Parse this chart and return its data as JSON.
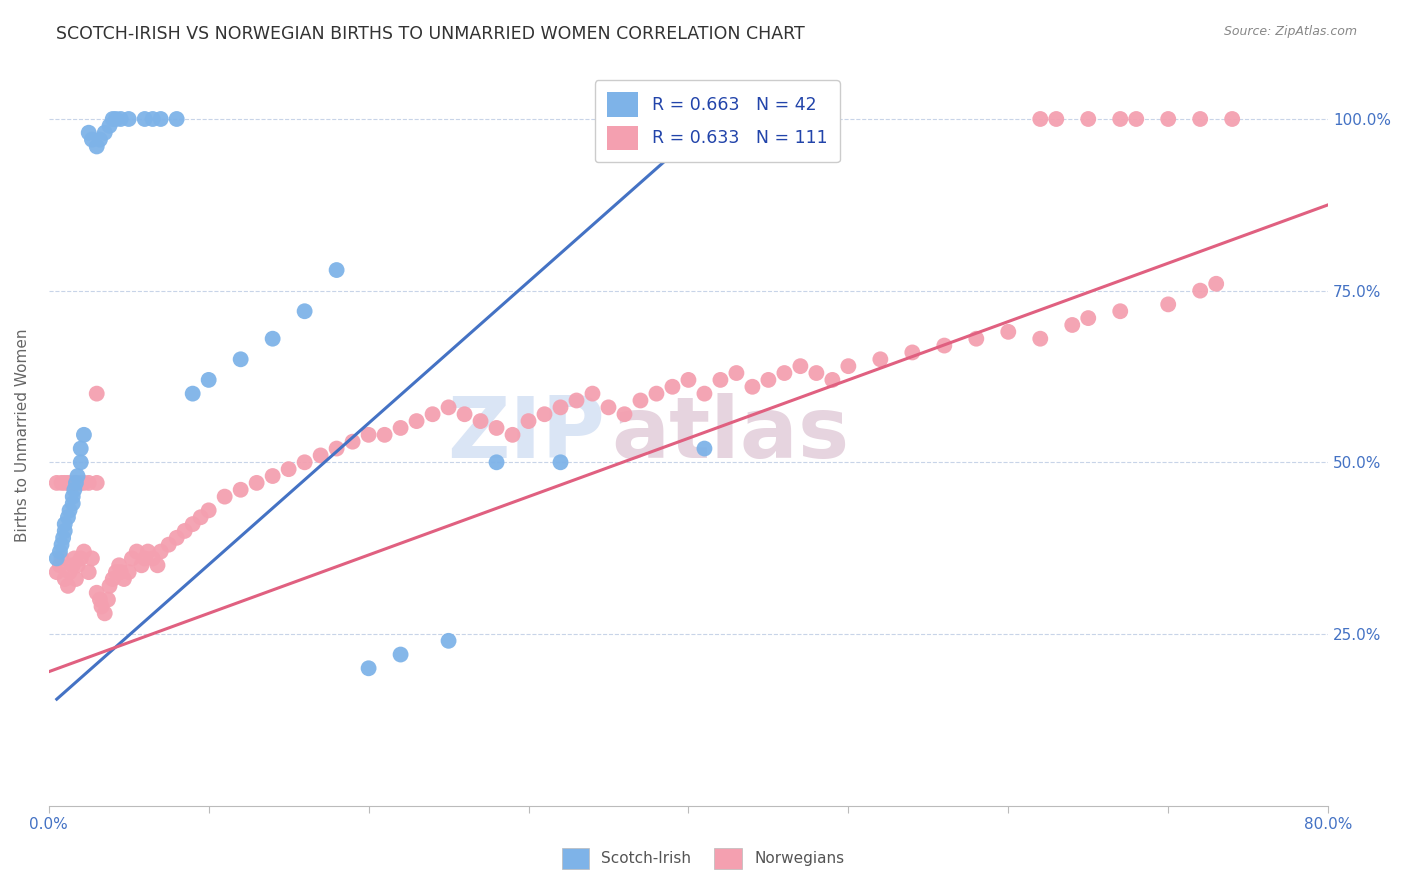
{
  "title": "SCOTCH-IRISH VS NORWEGIAN BIRTHS TO UNMARRIED WOMEN CORRELATION CHART",
  "source": "Source: ZipAtlas.com",
  "ylabel": "Births to Unmarried Women",
  "x_min": 0.0,
  "x_max": 0.8,
  "y_min": 0.0,
  "y_max": 1.08,
  "x_ticks": [
    0.0,
    0.1,
    0.2,
    0.3,
    0.4,
    0.5,
    0.6,
    0.7,
    0.8
  ],
  "x_tick_labels": [
    "0.0%",
    "",
    "",
    "",
    "",
    "",
    "",
    "",
    "80.0%"
  ],
  "y_ticks": [
    0.25,
    0.5,
    0.75,
    1.0
  ],
  "y_tick_labels": [
    "25.0%",
    "50.0%",
    "75.0%",
    "100.0%"
  ],
  "scotch_irish_R": 0.663,
  "scotch_irish_N": 42,
  "norwegian_R": 0.633,
  "norwegian_N": 111,
  "scotch_irish_color": "#7EB3E8",
  "norwegian_color": "#F4A0B0",
  "scotch_irish_line_color": "#4472C4",
  "norwegian_line_color": "#E06080",
  "legend_label_1": "R = 0.663   N = 42",
  "legend_label_2": "R = 0.633   N = 111",
  "watermark_zip": "ZIP",
  "watermark_atlas": "atlas",
  "bottom_legend_scotch": "Scotch-Irish",
  "bottom_legend_norwegian": "Norwegians",
  "si_line_x0": 0.005,
  "si_line_x1": 0.415,
  "si_line_y0": 0.155,
  "si_line_y1": 1.0,
  "no_line_x0": 0.0,
  "no_line_x1": 0.8,
  "no_line_y0": 0.195,
  "no_line_y1": 0.875,
  "si_x": [
    0.005,
    0.007,
    0.008,
    0.009,
    0.01,
    0.01,
    0.012,
    0.013,
    0.015,
    0.015,
    0.016,
    0.017,
    0.018,
    0.02,
    0.02,
    0.022,
    0.025,
    0.027,
    0.03,
    0.032,
    0.035,
    0.038,
    0.04,
    0.042,
    0.045,
    0.05,
    0.06,
    0.065,
    0.07,
    0.08,
    0.09,
    0.1,
    0.12,
    0.14,
    0.16,
    0.18,
    0.2,
    0.22,
    0.25,
    0.28,
    0.32,
    0.41
  ],
  "si_y": [
    0.36,
    0.37,
    0.38,
    0.39,
    0.4,
    0.41,
    0.42,
    0.43,
    0.44,
    0.45,
    0.46,
    0.47,
    0.48,
    0.5,
    0.52,
    0.54,
    0.98,
    0.97,
    0.96,
    0.97,
    0.98,
    0.99,
    1.0,
    1.0,
    1.0,
    1.0,
    1.0,
    1.0,
    1.0,
    1.0,
    0.6,
    0.62,
    0.65,
    0.68,
    0.72,
    0.78,
    0.2,
    0.22,
    0.24,
    0.5,
    0.5,
    0.52
  ],
  "no_x": [
    0.005,
    0.007,
    0.008,
    0.01,
    0.012,
    0.013,
    0.015,
    0.016,
    0.017,
    0.018,
    0.02,
    0.022,
    0.025,
    0.027,
    0.03,
    0.032,
    0.033,
    0.035,
    0.037,
    0.038,
    0.04,
    0.042,
    0.044,
    0.045,
    0.047,
    0.05,
    0.052,
    0.055,
    0.058,
    0.06,
    0.062,
    0.065,
    0.068,
    0.07,
    0.075,
    0.08,
    0.085,
    0.09,
    0.095,
    0.1,
    0.11,
    0.12,
    0.13,
    0.14,
    0.15,
    0.16,
    0.17,
    0.18,
    0.19,
    0.2,
    0.21,
    0.22,
    0.23,
    0.24,
    0.25,
    0.26,
    0.27,
    0.28,
    0.29,
    0.3,
    0.31,
    0.32,
    0.33,
    0.34,
    0.35,
    0.36,
    0.37,
    0.38,
    0.39,
    0.4,
    0.41,
    0.42,
    0.43,
    0.44,
    0.45,
    0.46,
    0.47,
    0.48,
    0.49,
    0.5,
    0.52,
    0.54,
    0.56,
    0.58,
    0.6,
    0.62,
    0.64,
    0.65,
    0.67,
    0.7,
    0.72,
    0.73,
    0.62,
    0.63,
    0.65,
    0.67,
    0.68,
    0.7,
    0.72,
    0.74,
    0.005,
    0.008,
    0.01,
    0.012,
    0.015,
    0.017,
    0.02,
    0.022,
    0.025,
    0.03,
    0.03
  ],
  "no_y": [
    0.34,
    0.35,
    0.36,
    0.33,
    0.32,
    0.34,
    0.35,
    0.36,
    0.33,
    0.35,
    0.36,
    0.37,
    0.34,
    0.36,
    0.31,
    0.3,
    0.29,
    0.28,
    0.3,
    0.32,
    0.33,
    0.34,
    0.35,
    0.34,
    0.33,
    0.34,
    0.36,
    0.37,
    0.35,
    0.36,
    0.37,
    0.36,
    0.35,
    0.37,
    0.38,
    0.39,
    0.4,
    0.41,
    0.42,
    0.43,
    0.45,
    0.46,
    0.47,
    0.48,
    0.49,
    0.5,
    0.51,
    0.52,
    0.53,
    0.54,
    0.54,
    0.55,
    0.56,
    0.57,
    0.58,
    0.57,
    0.56,
    0.55,
    0.54,
    0.56,
    0.57,
    0.58,
    0.59,
    0.6,
    0.58,
    0.57,
    0.59,
    0.6,
    0.61,
    0.62,
    0.6,
    0.62,
    0.63,
    0.61,
    0.62,
    0.63,
    0.64,
    0.63,
    0.62,
    0.64,
    0.65,
    0.66,
    0.67,
    0.68,
    0.69,
    0.68,
    0.7,
    0.71,
    0.72,
    0.73,
    0.75,
    0.76,
    1.0,
    1.0,
    1.0,
    1.0,
    1.0,
    1.0,
    1.0,
    1.0,
    0.47,
    0.47,
    0.47,
    0.47,
    0.47,
    0.47,
    0.47,
    0.47,
    0.47,
    0.47,
    0.6
  ]
}
